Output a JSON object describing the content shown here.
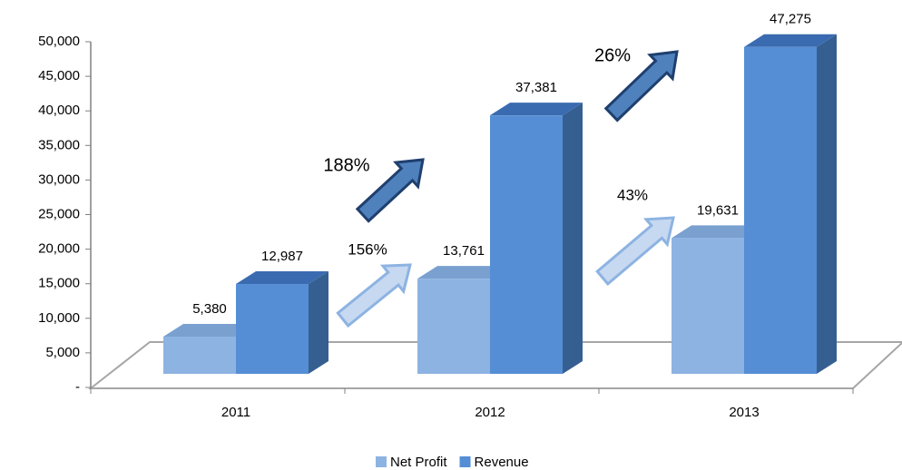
{
  "chart_data": {
    "type": "bar3d",
    "categories": [
      "2011",
      "2012",
      "2013"
    ],
    "series": [
      {
        "name": "Net Profit",
        "color": "#8db3e2",
        "values": [
          5380,
          13761,
          19631
        ],
        "value_labels": [
          "5,380",
          "13,761",
          "19,631"
        ]
      },
      {
        "name": "Revenue",
        "color": "#558ed5",
        "values": [
          12987,
          37381,
          47275
        ],
        "value_labels": [
          "12,987",
          "37,381",
          "47,275"
        ]
      }
    ],
    "ylim": [
      0,
      50000
    ],
    "yticks": [
      {
        "value": 0,
        "label": "-"
      },
      {
        "value": 5000,
        "label": "5,000"
      },
      {
        "value": 10000,
        "label": "10,000"
      },
      {
        "value": 15000,
        "label": "15,000"
      },
      {
        "value": 20000,
        "label": "20,000"
      },
      {
        "value": 25000,
        "label": "25,000"
      },
      {
        "value": 30000,
        "label": "30,000"
      },
      {
        "value": 35000,
        "label": "35,000"
      },
      {
        "value": 40000,
        "label": "40,000"
      },
      {
        "value": 45000,
        "label": "45,000"
      },
      {
        "value": 50000,
        "label": "50,000"
      }
    ],
    "annotations": [
      "156%",
      "188%",
      "43%",
      "26%"
    ],
    "legend": "bottom"
  }
}
